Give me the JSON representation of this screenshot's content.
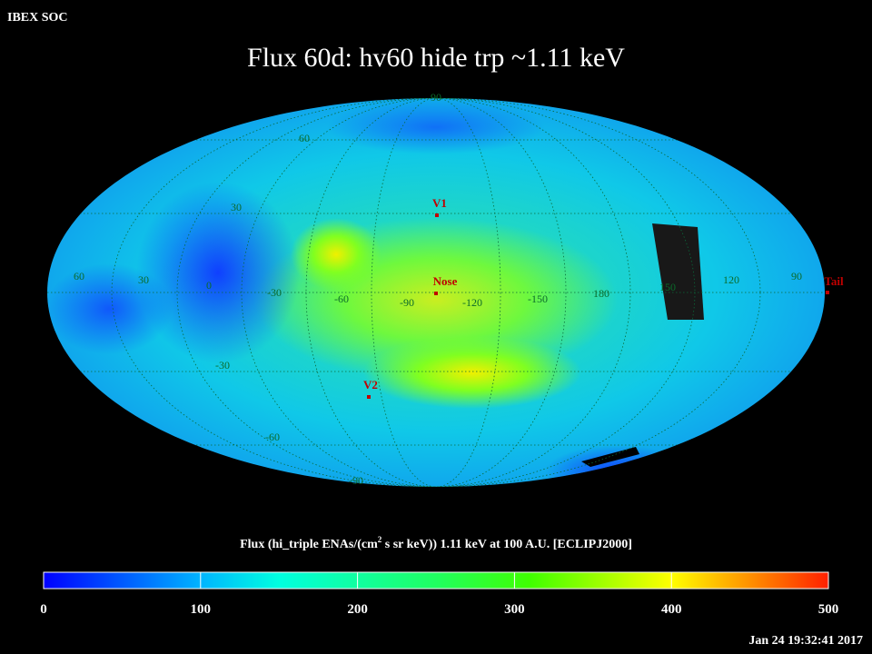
{
  "header": {
    "label": "IBEX SOC",
    "title": "Flux   60d: hv60 hide trp ~1.11 keV",
    "timestamp": "Jan 24 19:32:41 2017"
  },
  "map": {
    "latitude_labels": [
      "90",
      "60",
      "30",
      "-30",
      "-60",
      "-90"
    ],
    "longitude_labels": [
      "60",
      "30",
      "0",
      "-30",
      "-60",
      "-90",
      "-120",
      "-150",
      "180",
      "150",
      "120",
      "90"
    ],
    "markers": [
      "V1",
      "Nose",
      "V2",
      "Tail"
    ]
  },
  "colorbar": {
    "title_parts": [
      "Flux (hi_triple ENAs/(cm",
      "2",
      " s sr keV))  1.11 keV at 100 A.U. [ECLIPJ2000]"
    ],
    "range": [
      0,
      500
    ],
    "ticks": [
      0,
      100,
      200,
      300,
      400,
      500
    ]
  }
}
